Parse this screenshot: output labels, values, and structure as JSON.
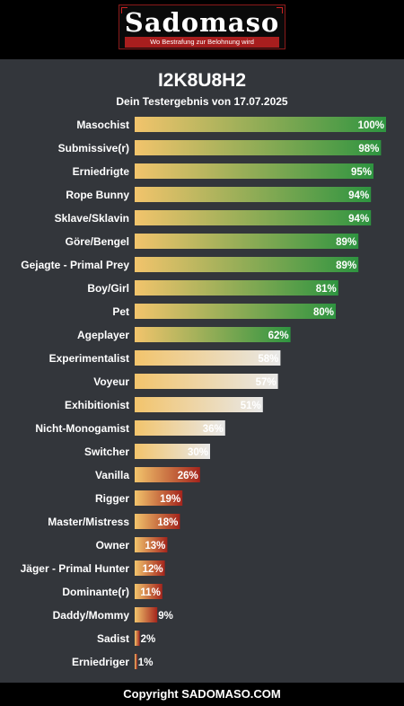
{
  "header": {
    "logo_text": "Sadomaso",
    "tagline": "Wo Bestrafung zur Belohnung wird"
  },
  "title": "I2K8U8H2",
  "subtitle": "Dein Testergebnis von 17.07.2025",
  "footer": "Copyright SADOMASO.COM",
  "chart_data": {
    "type": "bar",
    "orientation": "horizontal",
    "categories": [
      "Masochist",
      "Submissive(r)",
      "Erniedrigte",
      "Rope Bunny",
      "Sklave/Sklavin",
      "Göre/Bengel",
      "Gejagte - Primal Prey",
      "Boy/Girl",
      "Pet",
      "Ageplayer",
      "Experimentalist",
      "Voyeur",
      "Exhibitionist",
      "Nicht-Monogamist",
      "Switcher",
      "Vanilla",
      "Rigger",
      "Master/Mistress",
      "Owner",
      "Jäger - Primal Hunter",
      "Dominante(r)",
      "Daddy/Mommy",
      "Sadist",
      "Erniedriger"
    ],
    "values": [
      100,
      98,
      95,
      94,
      94,
      89,
      89,
      81,
      80,
      62,
      58,
      57,
      51,
      36,
      30,
      26,
      19,
      18,
      13,
      12,
      11,
      9,
      2,
      1
    ],
    "value_labels": [
      "100%",
      "98%",
      "95%",
      "94%",
      "94%",
      "89%",
      "89%",
      "81%",
      "80%",
      "62%",
      "58%",
      "57%",
      "51%",
      "36%",
      "30%",
      "26%",
      "19%",
      "18%",
      "13%",
      "12%",
      "11%",
      "9%",
      "2%",
      "1%"
    ],
    "xlim": [
      0,
      100
    ],
    "colors": {
      "start": "#f2c46c",
      "high": "#2e9440",
      "mid": "#e8e8e8",
      "low": "#a4241c"
    }
  }
}
